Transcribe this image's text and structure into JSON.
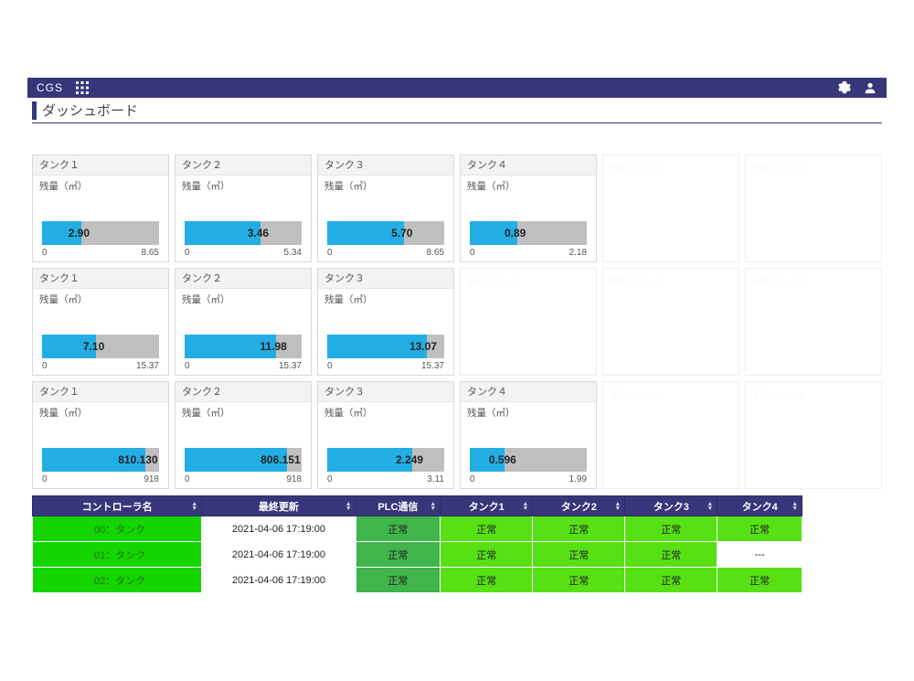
{
  "colors": {
    "navbar": "#37367a",
    "bar_fill": "#22aee5",
    "bar_track": "#bfbfbf",
    "row_name_bg": "#14d500",
    "plc_ok_bg": "#3fb54a",
    "tank_ok_bg": "#57e014"
  },
  "navbar": {
    "brand": "CGS"
  },
  "page_title": "ダッシュボード",
  "card_defaults": {
    "sublabel": "残量（㎥）",
    "min_label": "0",
    "placeholder_text": "予約スペース"
  },
  "rows": [
    {
      "cards": [
        {
          "title": "タンク１",
          "value": "2.90",
          "max": "8.65",
          "fill_pct": 33.5
        },
        {
          "title": "タンク２",
          "value": "3.46",
          "max": "5.34",
          "fill_pct": 64.8
        },
        {
          "title": "タンク３",
          "value": "5.70",
          "max": "8.65",
          "fill_pct": 65.9
        },
        {
          "title": "タンク４",
          "value": "0.89",
          "max": "2.18",
          "fill_pct": 40.8
        },
        {
          "placeholder": true
        },
        {
          "placeholder": true
        }
      ]
    },
    {
      "cards": [
        {
          "title": "タンク１",
          "value": "7.10",
          "max": "15.37",
          "fill_pct": 46.2
        },
        {
          "title": "タンク２",
          "value": "11.98",
          "max": "15.37",
          "fill_pct": 77.9
        },
        {
          "title": "タンク３",
          "value": "13.07",
          "max": "15.37",
          "fill_pct": 85.0
        },
        {
          "placeholder": true
        },
        {
          "placeholder": true
        },
        {
          "placeholder": true
        }
      ]
    },
    {
      "cards": [
        {
          "title": "タンク１",
          "value": "810.130",
          "max": "918",
          "fill_pct": 88.2
        },
        {
          "title": "タンク２",
          "value": "806.151",
          "max": "918",
          "fill_pct": 87.8
        },
        {
          "title": "タンク３",
          "value": "2.249",
          "max": "3.11",
          "fill_pct": 72.3
        },
        {
          "title": "タンク４",
          "value": "0.596",
          "max": "1.99",
          "fill_pct": 30.0
        },
        {
          "placeholder": true
        },
        {
          "placeholder": true
        }
      ]
    }
  ],
  "table": {
    "col_widths_pct": [
      22,
      20,
      11,
      12,
      12,
      12,
      11
    ],
    "headers": [
      "コントローラ名",
      "最終更新",
      "PLC通信",
      "タンク1",
      "タンク2",
      "タンク3",
      "タンク4"
    ],
    "rows": [
      {
        "name": "00：タンク",
        "time": "2021-04-06 17:19:00",
        "plc": "正常",
        "tanks": [
          "正常",
          "正常",
          "正常",
          "正常"
        ]
      },
      {
        "name": "01：タンク",
        "time": "2021-04-06 17:19:00",
        "plc": "正常",
        "tanks": [
          "正常",
          "正常",
          "正常",
          "---"
        ]
      },
      {
        "name": "02：タンク",
        "time": "2021-04-06 17:19:00",
        "plc": "正常",
        "tanks": [
          "正常",
          "正常",
          "正常",
          "正常"
        ]
      }
    ],
    "blank_value": "---"
  }
}
